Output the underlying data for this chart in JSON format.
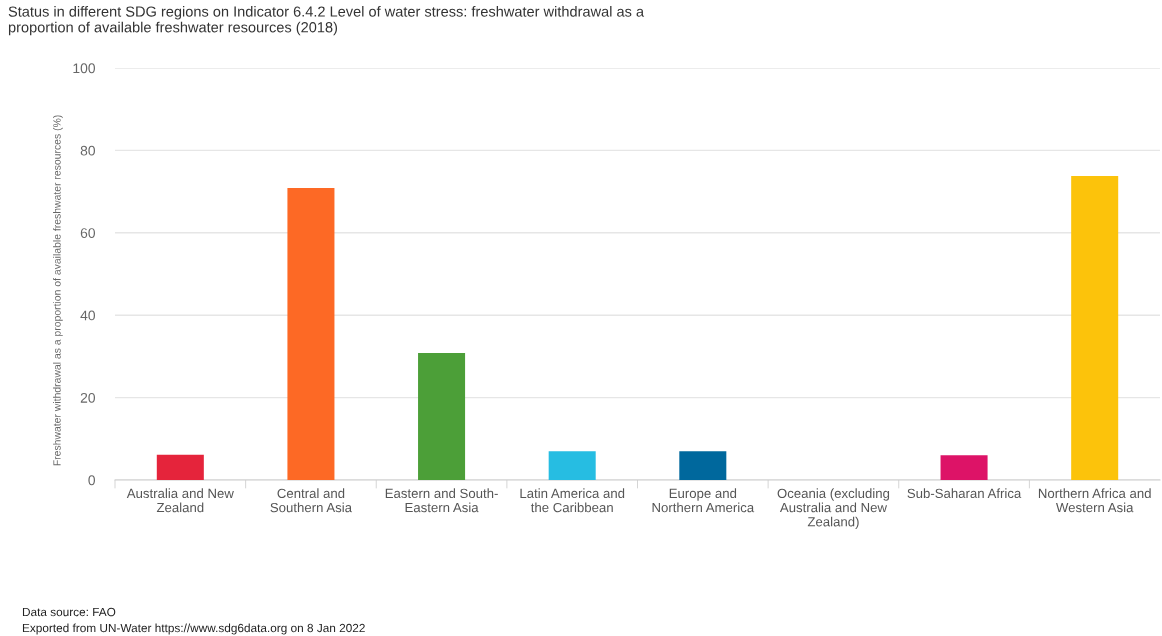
{
  "chart_data": {
    "type": "bar",
    "title": "Status in different SDG regions on Indicator 6.4.2 Level of water stress: freshwater withdrawal as a\nproportion of available freshwater resources (2018)",
    "ylabel": "Freshwater withdrawal as a proportion of available freshwater resources (%)",
    "categories": [
      "Australia and New\nZealand",
      "Central and\nSouthern Asia",
      "Eastern and South-\nEastern Asia",
      "Latin America and\nthe Caribbean",
      "Europe and\nNorthern America",
      "Oceania (excluding\nAustralia and New\nZealand)",
      "Sub-Saharan Africa",
      "Northern Africa and\nWestern Asia"
    ],
    "values": [
      6.1,
      70.9,
      30.8,
      7.0,
      7.0,
      0,
      6.0,
      73.8
    ],
    "colors": [
      "#e5243b",
      "#fd6925",
      "#4c9f38",
      "#26bde2",
      "#00689d",
      "#a21942",
      "#dd1367",
      "#fcc30b"
    ],
    "ylim": [
      0,
      100
    ],
    "yticks": [
      0,
      20,
      40,
      60,
      80,
      100
    ],
    "grid": "y",
    "annotations": [
      "Data source: FAO",
      "Exported from UN-Water https://www.sdg6data.org on 8 Jan 2022"
    ]
  }
}
